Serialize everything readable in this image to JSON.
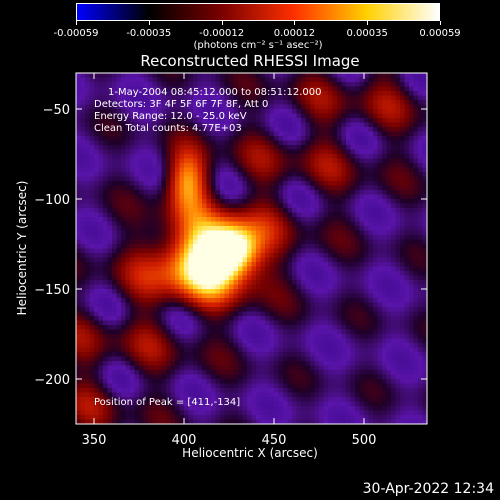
{
  "colorbar": {
    "ticks": [
      "-0.00059",
      "-0.00035",
      "-0.00012",
      "0.00012",
      "0.00035",
      "0.00059"
    ],
    "units": "(photons cm⁻² s⁻¹ asec⁻²)",
    "colors": [
      "#0000ff",
      "#000000",
      "#7a0000",
      "#ff3000",
      "#ffd000",
      "#ffffff"
    ]
  },
  "chart_data": {
    "type": "heatmap",
    "title": "Reconstructed RHESSI Image",
    "xlabel": "Heliocentric X (arcsec)",
    "ylabel": "Heliocentric Y (arcsec)",
    "xlim": [
      340,
      535
    ],
    "ylim": [
      -225,
      -30
    ],
    "xticks": [
      350,
      400,
      450,
      500
    ],
    "yticks": [
      -50,
      -100,
      -150,
      -200
    ],
    "peak": [
      411,
      -134
    ],
    "annotations": [
      "1-May-2004 08:45:12.000 to 08:51:12.000",
      "Detectors: 3F 4F 5F 6F 7F 8F, Att 0",
      "Energy Range: 12.0 - 25.0 keV",
      "Clean     Total counts: 4.77E+03"
    ],
    "peak_label": "Position of Peak = [411,-134]"
  },
  "footer": {
    "timestamp": "30-Apr-2022 12:34"
  }
}
